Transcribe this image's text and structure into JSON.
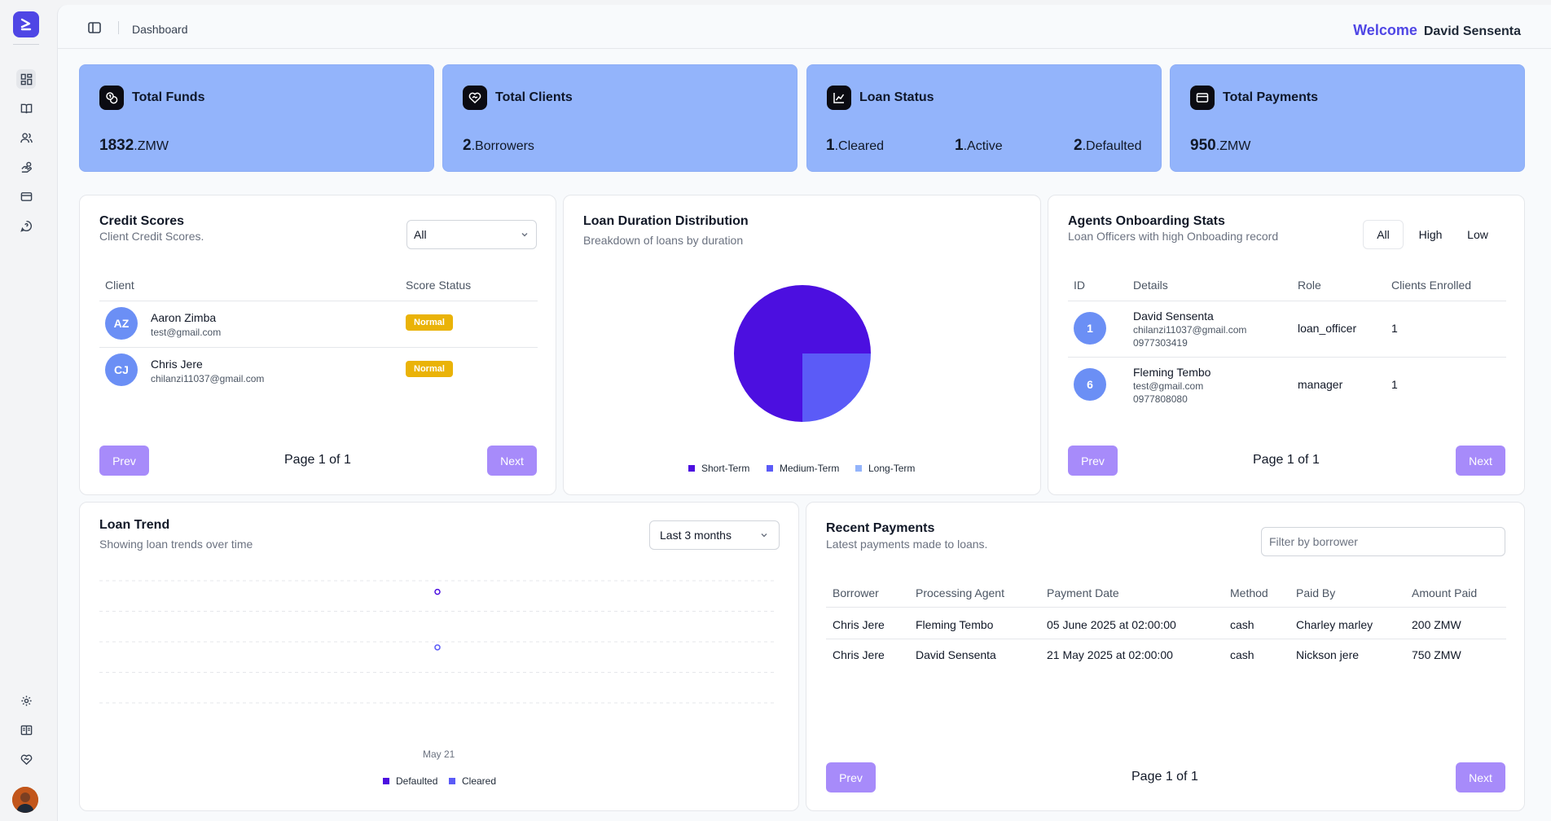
{
  "header": {
    "breadcrumb": "Dashboard",
    "welcome": "Welcome",
    "user_name": "David Sensenta"
  },
  "stats": [
    {
      "title": "Total Funds",
      "icon": "coins-icon",
      "value": "1832",
      "unit": ".ZMW"
    },
    {
      "title": "Total Clients",
      "icon": "handshake-icon",
      "value": "2",
      "unit": ".Borrowers"
    },
    {
      "title": "Loan Status",
      "icon": "chart-line-icon",
      "items": [
        {
          "value": "1",
          "unit": ".Cleared"
        },
        {
          "value": "1",
          "unit": ".Active"
        },
        {
          "value": "2",
          "unit": ".Defaulted"
        }
      ]
    },
    {
      "title": "Total Payments",
      "icon": "credit-card-icon",
      "value": "950",
      "unit": ".ZMW"
    }
  ],
  "credit_scores": {
    "title": "Credit Scores",
    "subtitle": "Client Credit Scores.",
    "filter_value": "All",
    "columns": [
      "Client",
      "Score Status"
    ],
    "rows": [
      {
        "initials": "AZ",
        "name": "Aaron Zimba",
        "email": "test@gmail.com",
        "status": "Normal"
      },
      {
        "initials": "CJ",
        "name": "Chris Jere",
        "email": "chilanzi11037@gmail.com",
        "status": "Normal"
      }
    ],
    "prev": "Prev",
    "next": "Next",
    "page": "Page 1 of 1"
  },
  "loan_duration": {
    "title": "Loan Duration Distribution",
    "subtitle": "Breakdown of loans by duration",
    "legend": [
      "Short-Term",
      "Medium-Term",
      "Long-Term"
    ],
    "colors": {
      "short": "#4c0fe0",
      "medium": "#5b5bf7",
      "long": "#93b4fb"
    }
  },
  "agents": {
    "title": "Agents Onboarding Stats",
    "subtitle": "Loan Officers with high Onboading record",
    "segments": [
      "All",
      "High",
      "Low"
    ],
    "columns": [
      "ID",
      "Details",
      "Role",
      "Clients Enrolled"
    ],
    "rows": [
      {
        "id": "1",
        "name": "David Sensenta",
        "email": "chilanzi11037@gmail.com",
        "phone": "0977303419",
        "role": "loan_officer",
        "clients": "1"
      },
      {
        "id": "6",
        "name": "Fleming Tembo",
        "email": "test@gmail.com",
        "phone": "0977808080",
        "role": "manager",
        "clients": "1"
      }
    ],
    "prev": "Prev",
    "next": "Next",
    "page": "Page 1 of 1"
  },
  "loan_trend": {
    "title": "Loan Trend",
    "subtitle": "Showing loan trends over time",
    "range_value": "Last 3 months",
    "x_tick": "May 21",
    "legend": [
      "Defaulted",
      "Cleared"
    ],
    "colors": {
      "defaulted": "#4c0fe0",
      "cleared": "#5b5bf7"
    }
  },
  "recent_payments": {
    "title": "Recent Payments",
    "subtitle": "Latest payments made to loans.",
    "filter_placeholder": "Filter by borrower",
    "columns": [
      "Borrower",
      "Processing Agent",
      "Payment Date",
      "Method",
      "Paid By",
      "Amount Paid"
    ],
    "rows": [
      [
        "Chris Jere",
        "Fleming Tembo",
        "05 June 2025 at 02:00:00",
        "cash",
        "Charley marley",
        "200 ZMW"
      ],
      [
        "Chris Jere",
        "David Sensenta",
        "21 May 2025 at 02:00:00",
        "cash",
        "Nickson jere",
        "750 ZMW"
      ]
    ],
    "prev": "Prev",
    "next": "Next",
    "page": "Page 1 of 1"
  },
  "sidebar": {
    "icons": [
      "dashboard-icon",
      "book-icon",
      "users-icon",
      "loans-icon",
      "credit-card-icon",
      "message-icon"
    ],
    "bottom_icons": [
      "settings-icon",
      "book-open-icon",
      "heart-handshake-icon"
    ]
  },
  "chart_data": [
    {
      "type": "pie",
      "title": "Loan Duration Distribution",
      "categories": [
        "Short-Term",
        "Medium-Term",
        "Long-Term"
      ],
      "values": [
        3,
        1,
        0
      ]
    },
    {
      "type": "line",
      "title": "Loan Trend",
      "x": [
        "May 21"
      ],
      "series": [
        {
          "name": "Defaulted",
          "values": [
            2
          ]
        },
        {
          "name": "Cleared",
          "values": [
            1
          ]
        }
      ]
    }
  ]
}
